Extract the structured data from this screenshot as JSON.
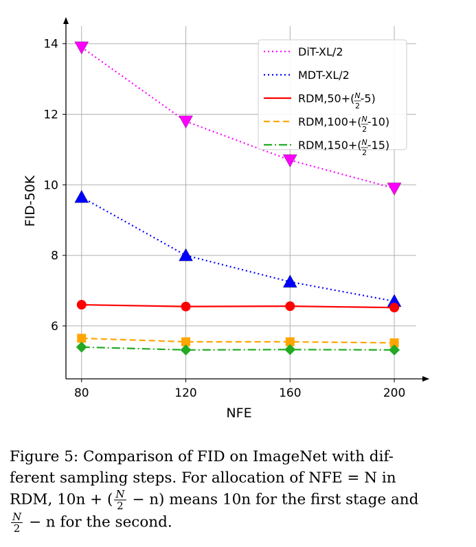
{
  "chart_data": {
    "type": "line",
    "x": [
      80,
      120,
      160,
      200
    ],
    "xlabel": "NFE",
    "ylabel": "FID-50K",
    "xticks": [
      "80",
      "120",
      "160",
      "200"
    ],
    "yticks": [
      "6",
      "8",
      "10",
      "12",
      "14"
    ],
    "xlim": [
      74,
      210
    ],
    "ylim": [
      4.5,
      14.5
    ],
    "grid": true,
    "legend_position": "top-right",
    "series": [
      {
        "name": "DiT-XL/2",
        "legend_main": "DiT-XL/2",
        "legend_frac": "",
        "legend_tail": "",
        "values": [
          13.9,
          11.8,
          10.7,
          9.9
        ],
        "color": "#ff00ff",
        "dash": "2,4",
        "marker": "triangle-down"
      },
      {
        "name": "MDT-XL/2",
        "legend_main": "MDT-XL/2",
        "legend_frac": "",
        "legend_tail": "",
        "values": [
          9.65,
          8.0,
          7.25,
          6.7
        ],
        "color": "#0000ff",
        "dash": "2,4",
        "marker": "triangle-up"
      },
      {
        "name": "RDM,50+(N/2-5)",
        "legend_main": "RDM,50+(",
        "legend_frac": "N/2",
        "legend_tail": "-5)",
        "values": [
          6.6,
          6.55,
          6.56,
          6.52
        ],
        "color": "#ff0000",
        "dash": "",
        "marker": "circle"
      },
      {
        "name": "RDM,100+(N/2-10)",
        "legend_main": "RDM,100+(",
        "legend_frac": "N/2",
        "legend_tail": "-10)",
        "values": [
          5.65,
          5.55,
          5.55,
          5.52
        ],
        "color": "#ffa500",
        "dash": "9,5",
        "marker": "square"
      },
      {
        "name": "RDM,150+(N/2-15)",
        "legend_main": "RDM,150+(",
        "legend_frac": "N/2",
        "legend_tail": "-15)",
        "values": [
          5.4,
          5.32,
          5.33,
          5.32
        ],
        "color": "#22aa22",
        "dash": "12,4,2,4",
        "marker": "diamond"
      }
    ]
  },
  "caption": {
    "line1": "Figure 5:  Comparison of FID on ImageNet with dif-",
    "line2": "ferent sampling steps.  For allocation of NFE = N in",
    "line3_a": "RDM, 10n + (",
    "frac_num": "N",
    "frac_den": "2",
    "line3_b": " − n) means 10n for the first stage and",
    "line4_b": " − n for the second."
  }
}
